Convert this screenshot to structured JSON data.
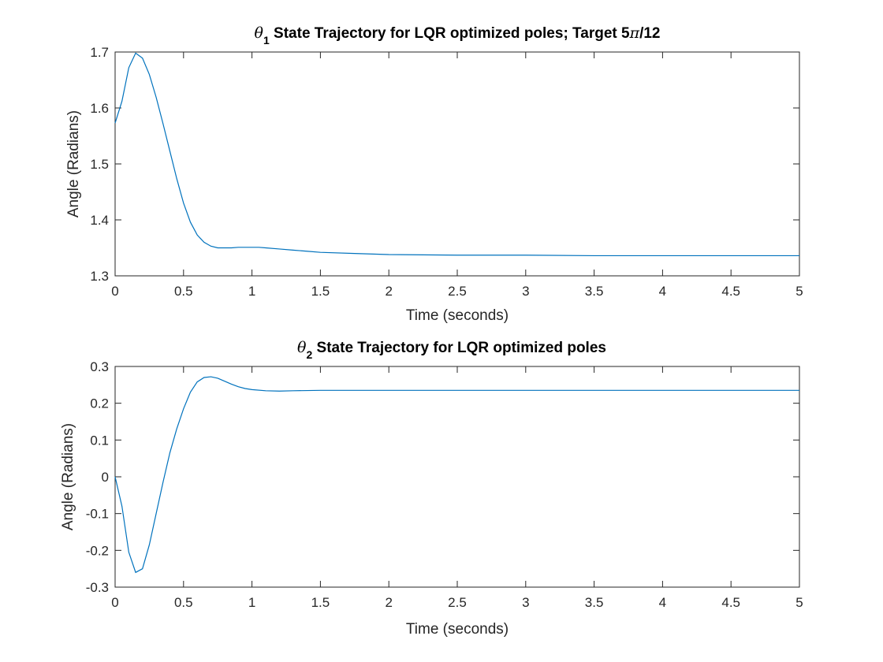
{
  "chart_data": [
    {
      "type": "line",
      "title_symbol": "θ",
      "title_subscript": "1",
      "title_text": " State Trajectory for LQR optimized poles; Target 5",
      "title_pi": "π",
      "title_tail": "/12",
      "xlabel": "Time (seconds)",
      "ylabel": "Angle (Radians)",
      "xlim": [
        0,
        5
      ],
      "ylim": [
        1.3,
        1.7
      ],
      "xticks": [
        0,
        0.5,
        1,
        1.5,
        2,
        2.5,
        3,
        3.5,
        4,
        4.5,
        5
      ],
      "yticks": [
        1.3,
        1.4,
        1.5,
        1.6,
        1.7
      ],
      "xtick_labels": [
        "0",
        "0.5",
        "1",
        "1.5",
        "2",
        "2.5",
        "3",
        "3.5",
        "4",
        "4.5",
        "5"
      ],
      "ytick_labels": [
        "1.3",
        "1.4",
        "1.5",
        "1.6",
        "1.7"
      ],
      "grid": false,
      "series": [
        {
          "color": "#0072BD",
          "x": [
            0,
            0.05,
            0.1,
            0.15,
            0.2,
            0.25,
            0.3,
            0.35,
            0.4,
            0.45,
            0.5,
            0.55,
            0.6,
            0.65,
            0.7,
            0.75,
            0.8,
            0.85,
            0.9,
            0.95,
            1.0,
            1.05,
            1.1,
            1.2,
            1.3,
            1.4,
            1.5,
            1.75,
            2.0,
            2.5,
            3.0,
            3.5,
            4.0,
            4.5,
            5.0
          ],
          "y": [
            1.573,
            1.612,
            1.672,
            1.698,
            1.689,
            1.66,
            1.619,
            1.572,
            1.523,
            1.474,
            1.43,
            1.396,
            1.373,
            1.36,
            1.353,
            1.35,
            1.35,
            1.35,
            1.351,
            1.351,
            1.351,
            1.351,
            1.35,
            1.348,
            1.346,
            1.344,
            1.342,
            1.34,
            1.338,
            1.337,
            1.337,
            1.336,
            1.336,
            1.336,
            1.336
          ]
        }
      ]
    },
    {
      "type": "line",
      "title_symbol": "θ",
      "title_subscript": "2",
      "title_text": " State Trajectory for LQR optimized poles",
      "xlabel": "Time (seconds)",
      "ylabel": "Angle (Radians)",
      "xlim": [
        0,
        5
      ],
      "ylim": [
        -0.3,
        0.3
      ],
      "xticks": [
        0,
        0.5,
        1,
        1.5,
        2,
        2.5,
        3,
        3.5,
        4,
        4.5,
        5
      ],
      "yticks": [
        -0.3,
        -0.2,
        -0.1,
        0,
        0.1,
        0.2,
        0.3
      ],
      "xtick_labels": [
        "0",
        "0.5",
        "1",
        "1.5",
        "2",
        "2.5",
        "3",
        "3.5",
        "4",
        "4.5",
        "5"
      ],
      "ytick_labels": [
        "-0.3",
        "-0.2",
        "-0.1",
        "0",
        "0.1",
        "0.2",
        "0.3"
      ],
      "grid": false,
      "series": [
        {
          "color": "#0072BD",
          "x": [
            0,
            0.05,
            0.1,
            0.15,
            0.2,
            0.25,
            0.3,
            0.35,
            0.4,
            0.45,
            0.5,
            0.55,
            0.6,
            0.65,
            0.7,
            0.75,
            0.8,
            0.85,
            0.9,
            0.95,
            1.0,
            1.1,
            1.2,
            1.3,
            1.5,
            2.0,
            2.5,
            3.0,
            3.5,
            4.0,
            4.5,
            5.0
          ],
          "y": [
            0.0,
            -0.08,
            -0.205,
            -0.26,
            -0.25,
            -0.185,
            -0.1,
            -0.015,
            0.065,
            0.13,
            0.185,
            0.23,
            0.258,
            0.27,
            0.272,
            0.268,
            0.26,
            0.252,
            0.245,
            0.24,
            0.237,
            0.234,
            0.233,
            0.234,
            0.235,
            0.235,
            0.235,
            0.235,
            0.235,
            0.235,
            0.235,
            0.235
          ]
        }
      ]
    }
  ]
}
